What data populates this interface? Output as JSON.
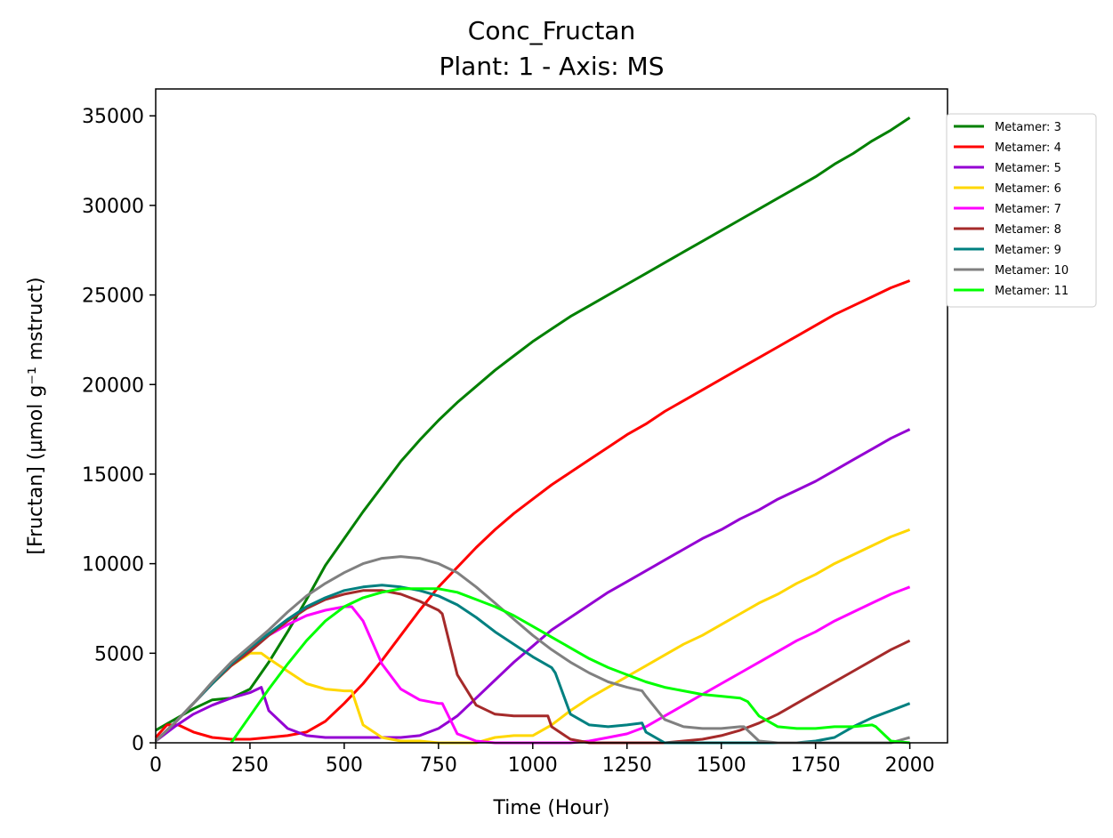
{
  "chart_data": {
    "type": "line",
    "title": "Conc_Fructan",
    "subtitle": "Plant: 1 - Axis: MS",
    "xlabel": "Time (Hour)",
    "ylabel": "[Fructan] (µmol g⁻¹ mstruct)",
    "xlim": [
      0,
      2100
    ],
    "ylim": [
      0,
      36500
    ],
    "xticks": [
      0,
      250,
      500,
      750,
      1000,
      1250,
      1500,
      1750,
      2000
    ],
    "yticks": [
      0,
      5000,
      10000,
      15000,
      20000,
      25000,
      30000,
      35000
    ],
    "grid": false,
    "legend_position": "outside-top-right",
    "series": [
      {
        "name": "Metamer: 3",
        "color": "#008000",
        "x": [
          0,
          50,
          100,
          150,
          200,
          250,
          300,
          350,
          400,
          450,
          500,
          550,
          600,
          650,
          700,
          750,
          800,
          850,
          900,
          950,
          1000,
          1050,
          1100,
          1150,
          1200,
          1250,
          1300,
          1350,
          1400,
          1450,
          1500,
          1550,
          1600,
          1650,
          1700,
          1750,
          1800,
          1850,
          1900,
          1950,
          2000
        ],
        "y": [
          700,
          1300,
          1900,
          2400,
          2500,
          3000,
          4500,
          6200,
          8000,
          9900,
          11400,
          12900,
          14300,
          15700,
          16900,
          18000,
          19000,
          19900,
          20800,
          21600,
          22400,
          23100,
          23800,
          24400,
          25000,
          25600,
          26200,
          26800,
          27400,
          28000,
          28600,
          29200,
          29800,
          30400,
          31000,
          31600,
          32300,
          32900,
          33600,
          34200,
          34900
        ]
      },
      {
        "name": "Metamer: 4",
        "color": "#ff0000",
        "x": [
          0,
          30,
          60,
          100,
          150,
          200,
          250,
          300,
          350,
          400,
          450,
          500,
          550,
          600,
          650,
          700,
          750,
          800,
          850,
          900,
          950,
          1000,
          1050,
          1100,
          1150,
          1200,
          1250,
          1300,
          1350,
          1400,
          1450,
          1500,
          1550,
          1600,
          1650,
          1700,
          1750,
          1800,
          1850,
          1900,
          1950,
          2000
        ],
        "y": [
          300,
          1000,
          1000,
          600,
          300,
          200,
          200,
          300,
          400,
          600,
          1200,
          2200,
          3300,
          4600,
          6000,
          7400,
          8700,
          9800,
          10900,
          11900,
          12800,
          13600,
          14400,
          15100,
          15800,
          16500,
          17200,
          17800,
          18500,
          19100,
          19700,
          20300,
          20900,
          21500,
          22100,
          22700,
          23300,
          23900,
          24400,
          24900,
          25400,
          25800
        ]
      },
      {
        "name": "Metamer: 5",
        "color": "#9400d3",
        "x": [
          0,
          50,
          100,
          150,
          200,
          250,
          280,
          300,
          350,
          400,
          450,
          500,
          550,
          600,
          650,
          700,
          750,
          800,
          850,
          900,
          950,
          1000,
          1050,
          1100,
          1150,
          1200,
          1250,
          1300,
          1350,
          1400,
          1450,
          1500,
          1550,
          1600,
          1650,
          1700,
          1750,
          1800,
          1850,
          1900,
          1950,
          2000
        ],
        "y": [
          100,
          900,
          1600,
          2100,
          2500,
          2800,
          3100,
          1800,
          800,
          400,
          300,
          300,
          300,
          300,
          300,
          400,
          800,
          1500,
          2500,
          3500,
          4500,
          5400,
          6300,
          7000,
          7700,
          8400,
          9000,
          9600,
          10200,
          10800,
          11400,
          11900,
          12500,
          13000,
          13600,
          14100,
          14600,
          15200,
          15800,
          16400,
          17000,
          17500
        ]
      },
      {
        "name": "Metamer: 6",
        "color": "#ffd700",
        "x": [
          0,
          50,
          100,
          150,
          200,
          250,
          280,
          300,
          350,
          400,
          450,
          500,
          520,
          550,
          600,
          650,
          700,
          750,
          800,
          850,
          900,
          950,
          1000,
          1050,
          1100,
          1150,
          1200,
          1250,
          1300,
          1350,
          1400,
          1450,
          1500,
          1550,
          1600,
          1650,
          1700,
          1750,
          1800,
          1850,
          1900,
          1950,
          2000
        ],
        "y": [
          100,
          1100,
          2200,
          3300,
          4300,
          5000,
          5000,
          4700,
          4000,
          3300,
          3000,
          2900,
          2900,
          1000,
          300,
          100,
          100,
          0,
          0,
          0,
          300,
          400,
          400,
          1000,
          1800,
          2500,
          3100,
          3700,
          4300,
          4900,
          5500,
          6000,
          6600,
          7200,
          7800,
          8300,
          8900,
          9400,
          10000,
          10500,
          11000,
          11500,
          11900
        ]
      },
      {
        "name": "Metamer: 7",
        "color": "#ff00ff",
        "x": [
          0,
          50,
          100,
          150,
          200,
          250,
          300,
          350,
          400,
          450,
          500,
          520,
          550,
          600,
          650,
          700,
          750,
          760,
          800,
          850,
          900,
          950,
          1000,
          1050,
          1100,
          1150,
          1200,
          1250,
          1300,
          1350,
          1400,
          1450,
          1500,
          1550,
          1600,
          1650,
          1700,
          1750,
          1800,
          1850,
          1900,
          1950,
          2000
        ],
        "y": [
          100,
          1100,
          2200,
          3300,
          4400,
          5200,
          6000,
          6600,
          7100,
          7400,
          7600,
          7600,
          6800,
          4400,
          3000,
          2400,
          2200,
          2200,
          500,
          100,
          0,
          0,
          0,
          0,
          0,
          100,
          300,
          500,
          900,
          1500,
          2100,
          2700,
          3300,
          3900,
          4500,
          5100,
          5700,
          6200,
          6800,
          7300,
          7800,
          8300,
          8700
        ]
      },
      {
        "name": "Metamer: 8",
        "color": "#a52a2a",
        "x": [
          0,
          50,
          100,
          150,
          200,
          250,
          300,
          350,
          400,
          450,
          500,
          550,
          600,
          650,
          700,
          750,
          760,
          800,
          850,
          900,
          950,
          1000,
          1040,
          1050,
          1100,
          1150,
          1200,
          1250,
          1300,
          1350,
          1400,
          1450,
          1500,
          1550,
          1600,
          1650,
          1700,
          1750,
          1800,
          1850,
          1900,
          1950,
          2000
        ],
        "y": [
          100,
          1100,
          2200,
          3300,
          4300,
          5100,
          6000,
          6800,
          7500,
          8000,
          8300,
          8500,
          8500,
          8300,
          7900,
          7400,
          7200,
          3800,
          2100,
          1600,
          1500,
          1500,
          1500,
          900,
          200,
          0,
          0,
          0,
          0,
          0,
          100,
          200,
          400,
          700,
          1100,
          1600,
          2200,
          2800,
          3400,
          4000,
          4600,
          5200,
          5700
        ]
      },
      {
        "name": "Metamer: 9",
        "color": "#008080",
        "x": [
          0,
          50,
          100,
          150,
          200,
          250,
          300,
          350,
          400,
          450,
          500,
          550,
          600,
          650,
          700,
          750,
          800,
          850,
          900,
          950,
          1000,
          1050,
          1060,
          1100,
          1150,
          1200,
          1250,
          1290,
          1300,
          1350,
          1400,
          1450,
          1500,
          1550,
          1600,
          1650,
          1700,
          1750,
          1800,
          1850,
          1900,
          1950,
          2000
        ],
        "y": [
          100,
          1100,
          2200,
          3300,
          4400,
          5300,
          6100,
          6900,
          7600,
          8100,
          8500,
          8700,
          8800,
          8700,
          8500,
          8200,
          7700,
          7000,
          6200,
          5500,
          4800,
          4200,
          3900,
          1600,
          1000,
          900,
          1000,
          1100,
          600,
          0,
          0,
          0,
          0,
          0,
          0,
          0,
          0,
          100,
          300,
          900,
          1400,
          1800,
          2200
        ]
      },
      {
        "name": "Metamer: 10",
        "color": "#808080",
        "x": [
          0,
          50,
          100,
          150,
          200,
          250,
          300,
          350,
          400,
          450,
          500,
          550,
          600,
          650,
          700,
          750,
          800,
          850,
          900,
          950,
          1000,
          1050,
          1100,
          1150,
          1200,
          1250,
          1290,
          1300,
          1350,
          1400,
          1450,
          1500,
          1550,
          1560,
          1600,
          1650,
          1700,
          1750,
          1800,
          1850,
          1900,
          1950,
          2000
        ],
        "y": [
          100,
          1100,
          2200,
          3400,
          4500,
          5400,
          6300,
          7300,
          8200,
          8900,
          9500,
          10000,
          10300,
          10400,
          10300,
          10000,
          9500,
          8700,
          7800,
          6900,
          6000,
          5200,
          4500,
          3900,
          3400,
          3100,
          2900,
          2600,
          1300,
          900,
          800,
          800,
          900,
          900,
          100,
          0,
          0,
          0,
          0,
          0,
          0,
          0,
          300
        ]
      },
      {
        "name": "Metamer: 11",
        "color": "#00ff00",
        "x": [
          200,
          250,
          300,
          350,
          400,
          450,
          500,
          550,
          600,
          650,
          700,
          750,
          800,
          850,
          900,
          950,
          1000,
          1050,
          1100,
          1150,
          1200,
          1250,
          1300,
          1350,
          1400,
          1450,
          1500,
          1550,
          1570,
          1600,
          1650,
          1700,
          1750,
          1800,
          1850,
          1900,
          1910,
          1950,
          2000
        ],
        "y": [
          0,
          1500,
          3000,
          4400,
          5700,
          6800,
          7600,
          8100,
          8400,
          8600,
          8600,
          8600,
          8400,
          8000,
          7600,
          7100,
          6500,
          5900,
          5300,
          4700,
          4200,
          3800,
          3400,
          3100,
          2900,
          2700,
          2600,
          2500,
          2300,
          1500,
          900,
          800,
          800,
          900,
          900,
          1000,
          900,
          100,
          0
        ]
      }
    ]
  }
}
